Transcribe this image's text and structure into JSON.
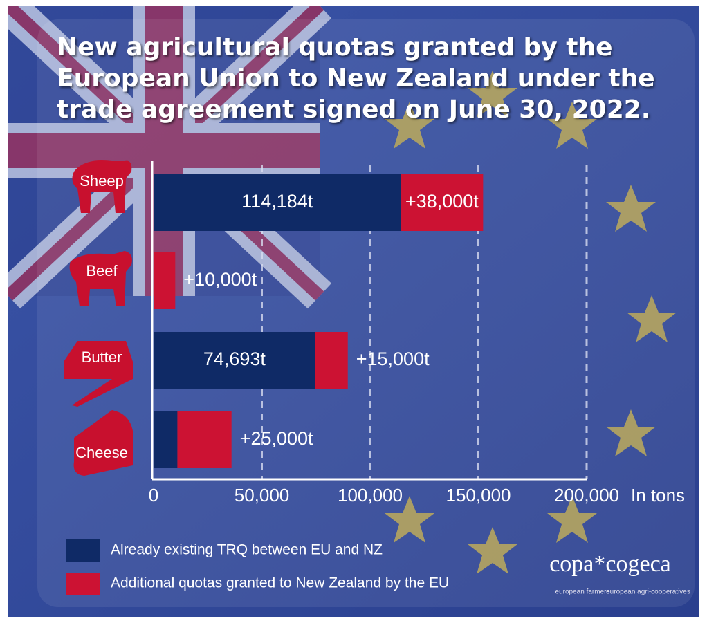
{
  "chart_data": {
    "type": "stacked-barh",
    "title": "New agricultural quotas granted by the European Union to New Zealand under the trade agreement signed on June 30, 2022.",
    "categories": [
      "Sheep",
      "Beef",
      "Butter",
      "Cheese"
    ],
    "series": [
      {
        "name": "Already existing TRQ between EU and NZ",
        "color": "#0f2a66",
        "values": [
          114184,
          0,
          74693,
          11000
        ],
        "value_labels": [
          "114,184t",
          null,
          "74,693t",
          null
        ]
      },
      {
        "name": "Additional quotas granted to New Zealand by the EU",
        "color": "#cc1233",
        "values": [
          38000,
          10000,
          15000,
          25000
        ],
        "value_labels": [
          "+38,000t",
          "+10,000t",
          "+15,000t",
          "+25,000t"
        ]
      }
    ],
    "xlim": [
      0,
      200000
    ],
    "xticks": [
      0,
      {
        "value": 50000,
        "label": "50,000"
      },
      {
        "value": 100000,
        "label": "100,000"
      },
      {
        "value": 150000,
        "label": "150,000"
      },
      {
        "value": 200000,
        "label": "200,000"
      }
    ],
    "x_label": "In tons",
    "grid": true,
    "brand": {
      "name": "copa*cogeca",
      "left": "european farmers",
      "right": "european agri-cooperatives"
    }
  }
}
